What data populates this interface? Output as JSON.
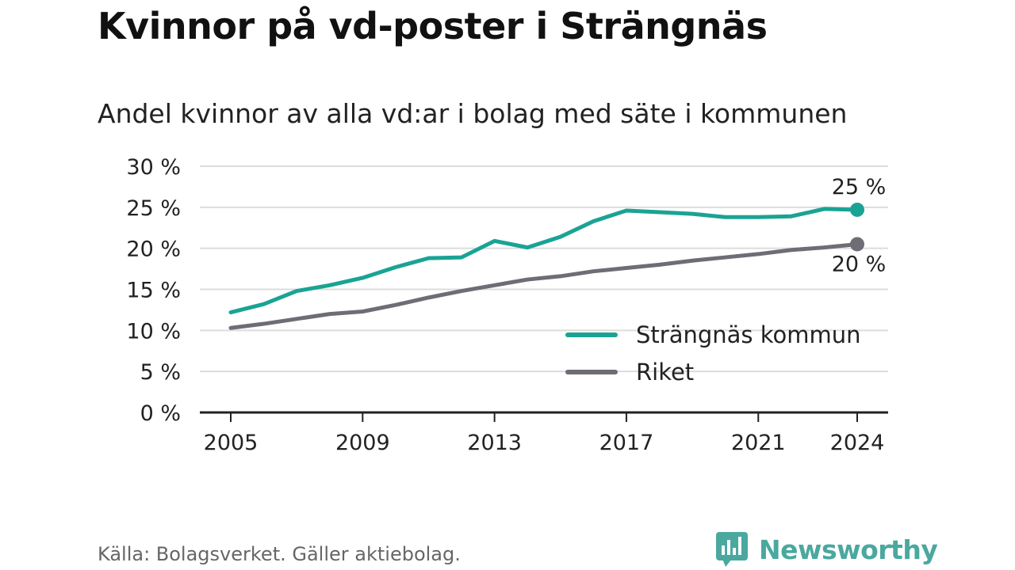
{
  "title": "Kvinnor på vd-poster i Strängnäs",
  "subtitle": "Andel kvinnor av alla vd:ar i bolag med säte i kommunen",
  "footer": {
    "source": "Källa: Bolagsverket. Gäller aktiebolag."
  },
  "brand": {
    "name": "Newsworthy",
    "icon": "newsworthy-logo-icon",
    "color": "#4aa89f"
  },
  "chart_data": {
    "type": "line",
    "x": [
      2005,
      2006,
      2007,
      2008,
      2009,
      2010,
      2011,
      2012,
      2013,
      2014,
      2015,
      2016,
      2017,
      2018,
      2019,
      2020,
      2021,
      2022,
      2023,
      2024
    ],
    "x_ticks": [
      2005,
      2009,
      2013,
      2017,
      2021,
      2024
    ],
    "ylim": [
      0,
      30
    ],
    "y_ticks": [
      0,
      5,
      10,
      15,
      20,
      25,
      30
    ],
    "y_tick_labels": [
      "0 %",
      "5 %",
      "10 %",
      "15 %",
      "20 %",
      "25 %",
      "30 %"
    ],
    "grid": true,
    "legend_position": "bottom-right",
    "series": [
      {
        "name": "Strängnäs kommun",
        "color": "#1aa394",
        "values": [
          12.2,
          13.2,
          14.8,
          15.5,
          16.4,
          17.7,
          18.8,
          18.9,
          20.9,
          20.1,
          21.4,
          23.3,
          24.6,
          24.4,
          24.2,
          23.8,
          23.8,
          23.9,
          24.8,
          24.7
        ],
        "end_label": "25 %"
      },
      {
        "name": "Riket",
        "color": "#6e6d75",
        "values": [
          10.3,
          10.8,
          11.4,
          12.0,
          12.3,
          13.1,
          14.0,
          14.8,
          15.5,
          16.2,
          16.6,
          17.2,
          17.6,
          18.0,
          18.5,
          18.9,
          19.3,
          19.8,
          20.1,
          20.5
        ],
        "end_label": "20 %"
      }
    ]
  }
}
